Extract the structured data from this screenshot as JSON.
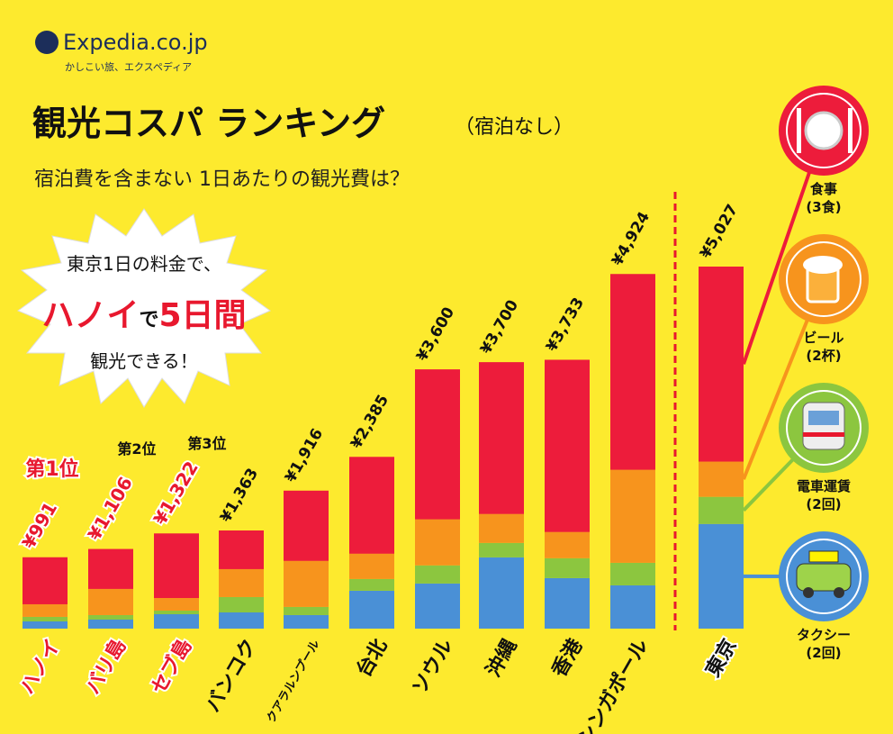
{
  "logo": {
    "brand": "Expedia.co.jp",
    "tagline": "かしこい旅、エクスペディア"
  },
  "callout": {
    "line1": "東京1日の料金で、",
    "line2_city": "ハノイ",
    "line2_mid": "で",
    "line2_days": "5日間",
    "line3": "観光できる！"
  },
  "ranks": [
    "第1位",
    "第2位",
    "第3位"
  ],
  "chart_data": {
    "type": "stacked-bar",
    "title": "観光コスパ ランキング",
    "title_note": "（宿泊なし）",
    "subtitle": "宿泊費を含まない 1日あたりの観光費は？",
    "categories": [
      "ハノイ",
      "バリ島",
      "セブ島",
      "バンコク",
      "クアラルンプール",
      "台北",
      "ソウル",
      "沖縄",
      "香港",
      "シンガポール",
      "東京"
    ],
    "totals": [
      991,
      1106,
      1322,
      1363,
      1916,
      2385,
      3600,
      3700,
      3733,
      4924,
      5027
    ],
    "total_labels": [
      "¥991",
      "¥1,106",
      "¥1,322",
      "¥1,363",
      "¥1,916",
      "¥2,385",
      "¥3,600",
      "¥3,700",
      "¥3,733",
      "¥4,924",
      "¥5,027"
    ],
    "series": [
      {
        "name": "タクシー",
        "detail": "(2回)",
        "color": "#4a90d6",
        "values": [
          100,
          125,
          200,
          225,
          188,
          526,
          627,
          990,
          702,
          601,
          1454
        ]
      },
      {
        "name": "電車運賃",
        "detail": "(2回)",
        "color": "#8cc63f",
        "values": [
          63,
          63,
          50,
          213,
          113,
          163,
          251,
          200,
          276,
          313,
          376
        ]
      },
      {
        "name": "ビール",
        "detail": "(2杯)",
        "color": "#f7941d",
        "values": [
          175,
          363,
          175,
          388,
          639,
          351,
          639,
          401,
          363,
          1291,
          489
        ]
      },
      {
        "name": "食事",
        "detail": "(3食)",
        "color": "#ed1c3b",
        "values": [
          653,
          555,
          897,
          537,
          976,
          1345,
          2083,
          2109,
          2392,
          2719,
          2708
        ]
      }
    ]
  }
}
